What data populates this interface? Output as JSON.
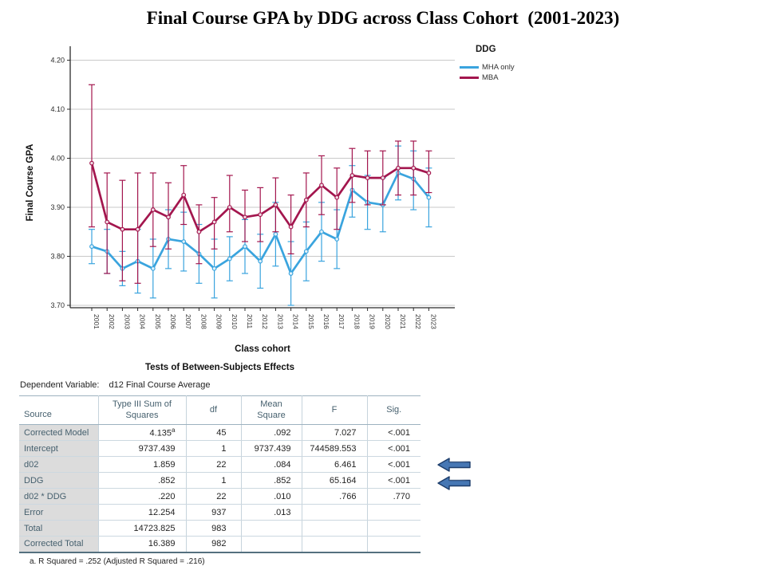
{
  "page_title": "Final Course GPA by DDG across Class Cohort  (2001-2023)",
  "chart_data": {
    "type": "line",
    "title": "Final Course GPA by DDG across Class Cohort (2001-2023)",
    "xlabel": "Class cohort",
    "ylabel": "Final Course GPA",
    "legend_title": "DDG",
    "legend_position": "top-right",
    "grid": true,
    "ylim": [
      3.67,
      4.23
    ],
    "yticks": [
      "3.70",
      "3.80",
      "3.90",
      "4.00",
      "4.10",
      "4.20"
    ],
    "x": [
      "2001",
      "2002",
      "2003",
      "2004",
      "2005",
      "2006",
      "2007",
      "2008",
      "2009",
      "2010",
      "2011",
      "2012",
      "2013",
      "2014",
      "2015",
      "2016",
      "2017",
      "2018",
      "2019",
      "2020",
      "2021",
      "2022",
      "2023"
    ],
    "series": [
      {
        "name": "MHA only",
        "color": "#3aa4de",
        "values": [
          3.82,
          3.81,
          3.775,
          3.79,
          3.775,
          3.835,
          3.83,
          3.805,
          3.775,
          3.795,
          3.82,
          3.79,
          3.845,
          3.765,
          3.81,
          3.85,
          3.835,
          3.935,
          3.91,
          3.905,
          3.97,
          3.958,
          3.92
        ],
        "err_lo": [
          3.785,
          3.765,
          3.74,
          3.725,
          3.715,
          3.775,
          3.77,
          3.745,
          3.715,
          3.75,
          3.765,
          3.735,
          3.78,
          3.7,
          3.75,
          3.79,
          3.775,
          3.88,
          3.855,
          3.85,
          3.915,
          3.895,
          3.86
        ],
        "err_hi": [
          3.855,
          3.855,
          3.81,
          3.855,
          3.835,
          3.895,
          3.89,
          3.865,
          3.835,
          3.84,
          3.875,
          3.845,
          3.91,
          3.83,
          3.87,
          3.91,
          3.895,
          3.985,
          3.965,
          3.96,
          4.025,
          4.015,
          3.98
        ]
      },
      {
        "name": "MBA",
        "color": "#a3164e",
        "values": [
          3.99,
          3.87,
          3.855,
          3.855,
          3.895,
          3.88,
          3.925,
          3.85,
          3.87,
          3.9,
          3.88,
          3.885,
          3.905,
          3.86,
          3.915,
          3.945,
          3.92,
          3.965,
          3.96,
          3.96,
          3.98,
          3.98,
          3.97
        ],
        "err_lo": [
          3.86,
          3.765,
          3.75,
          3.745,
          3.82,
          3.815,
          3.865,
          3.785,
          3.815,
          3.85,
          3.83,
          3.83,
          3.85,
          3.805,
          3.86,
          3.885,
          3.855,
          3.91,
          3.905,
          3.905,
          3.925,
          3.925,
          3.93
        ],
        "err_hi": [
          4.15,
          3.97,
          3.955,
          3.97,
          3.97,
          3.95,
          3.985,
          3.905,
          3.92,
          3.965,
          3.935,
          3.94,
          3.96,
          3.925,
          3.97,
          4.005,
          3.98,
          4.02,
          4.015,
          4.015,
          4.035,
          4.035,
          4.015
        ]
      }
    ]
  },
  "table": {
    "title": "Tests of Between-Subjects Effects",
    "dependent_variable_label": "Dependent Variable:",
    "dependent_variable": "d12 Final Course Average",
    "columns": [
      "Source",
      "Type III Sum of Squares",
      "df",
      "Mean Square",
      "F",
      "Sig."
    ],
    "rows": [
      {
        "source": "Corrected Model",
        "ss": "4.135",
        "ss_sup": "a",
        "df": "45",
        "ms": ".092",
        "f": "7.027",
        "sig": "<.001"
      },
      {
        "source": "Intercept",
        "ss": "9737.439",
        "df": "1",
        "ms": "9737.439",
        "f": "744589.553",
        "sig": "<.001"
      },
      {
        "source": "d02",
        "ss": "1.859",
        "df": "22",
        "ms": ".084",
        "f": "6.461",
        "sig": "<.001"
      },
      {
        "source": "DDG",
        "ss": ".852",
        "df": "1",
        "ms": ".852",
        "f": "65.164",
        "sig": "<.001"
      },
      {
        "source": "d02 * DDG",
        "ss": ".220",
        "df": "22",
        "ms": ".010",
        "f": ".766",
        "sig": ".770"
      },
      {
        "source": "Error",
        "ss": "12.254",
        "df": "937",
        "ms": ".013",
        "f": "",
        "sig": ""
      },
      {
        "source": "Total",
        "ss": "14723.825",
        "df": "983",
        "ms": "",
        "f": "",
        "sig": ""
      },
      {
        "source": "Corrected Total",
        "ss": "16.389",
        "df": "982",
        "ms": "",
        "f": "",
        "sig": ""
      }
    ],
    "footnote": "a. R Squared = .252 (Adjusted R Squared = .216)"
  },
  "annotations": {
    "arrow_rows": [
      "d02",
      "DDG"
    ],
    "arrow_fill": "#4677b4",
    "arrow_border": "#1d3d6b"
  },
  "colors": {
    "grid": "#c9c9c9",
    "axis": "#2b2b2b",
    "table_label_bg": "#dcdcdc"
  }
}
